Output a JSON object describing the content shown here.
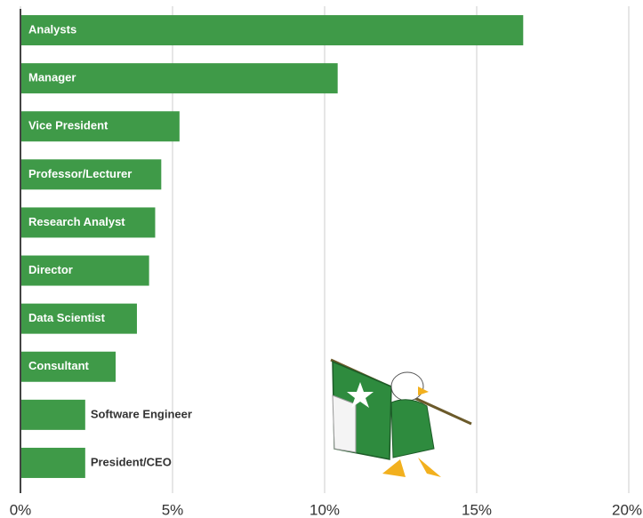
{
  "chart_data": {
    "type": "bar",
    "orientation": "horizontal",
    "categories": [
      "Analysts",
      "Manager",
      "Vice President",
      "Professor/Lecturer",
      "Research Analyst",
      "Director",
      "Data Scientist",
      "Consultant",
      "Software Engineer",
      "President/CEO"
    ],
    "values": [
      16.5,
      10.4,
      5.2,
      4.6,
      4.4,
      4.2,
      3.8,
      3.1,
      2.1,
      2.1
    ],
    "color": "#3f9a48",
    "xlim": [
      0,
      20
    ],
    "xticks": [
      {
        "value": 0,
        "label": "0%"
      },
      {
        "value": 5,
        "label": "5%"
      },
      {
        "value": 10,
        "label": "10%"
      },
      {
        "value": 15,
        "label": "15%"
      },
      {
        "value": 20,
        "label": "20%"
      }
    ],
    "grid": true
  }
}
